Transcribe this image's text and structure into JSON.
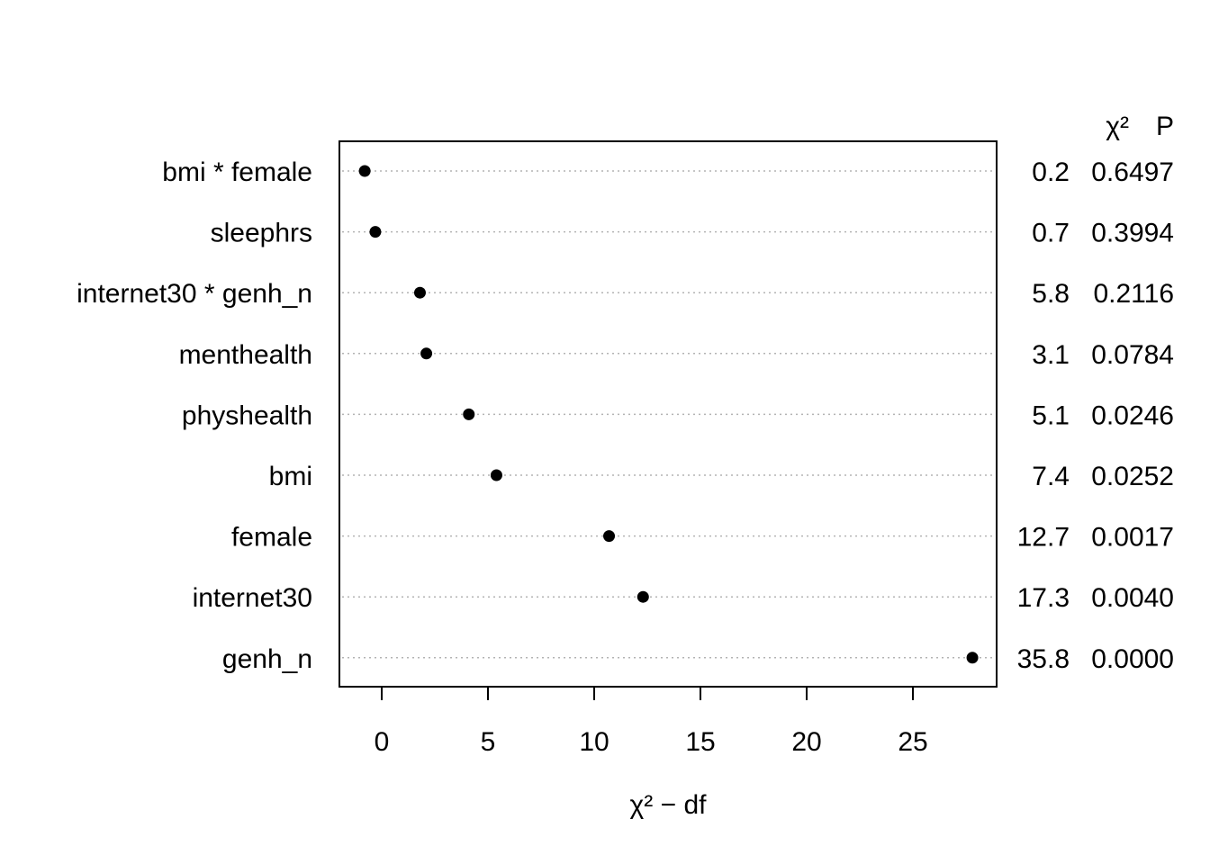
{
  "chart_data": {
    "type": "scatter",
    "title": "",
    "xlabel": "χ² − df",
    "xlim": [
      -2,
      29
    ],
    "x_ticks": [
      0,
      5,
      10,
      15,
      20,
      25
    ],
    "grid": "dotted horizontal guide line per row",
    "table_headers": {
      "chi2": "χ²",
      "p": "P"
    },
    "rows": [
      {
        "label": "bmi * female",
        "x": -0.8,
        "chi2": "0.2",
        "p": "0.6497"
      },
      {
        "label": "sleephrs",
        "x": -0.3,
        "chi2": "0.7",
        "p": "0.3994"
      },
      {
        "label": "internet30 * genh_n",
        "x": 1.8,
        "chi2": "5.8",
        "p": "0.2116"
      },
      {
        "label": "menthealth",
        "x": 2.1,
        "chi2": "3.1",
        "p": "0.0784"
      },
      {
        "label": "physhealth",
        "x": 4.1,
        "chi2": "5.1",
        "p": "0.0246"
      },
      {
        "label": "bmi",
        "x": 5.4,
        "chi2": "7.4",
        "p": "0.0252"
      },
      {
        "label": "female",
        "x": 10.7,
        "chi2": "12.7",
        "p": "0.0017"
      },
      {
        "label": "internet30",
        "x": 12.3,
        "chi2": "17.3",
        "p": "0.0040"
      },
      {
        "label": "genh_n",
        "x": 27.8,
        "chi2": "35.8",
        "p": "0.0000"
      }
    ]
  }
}
